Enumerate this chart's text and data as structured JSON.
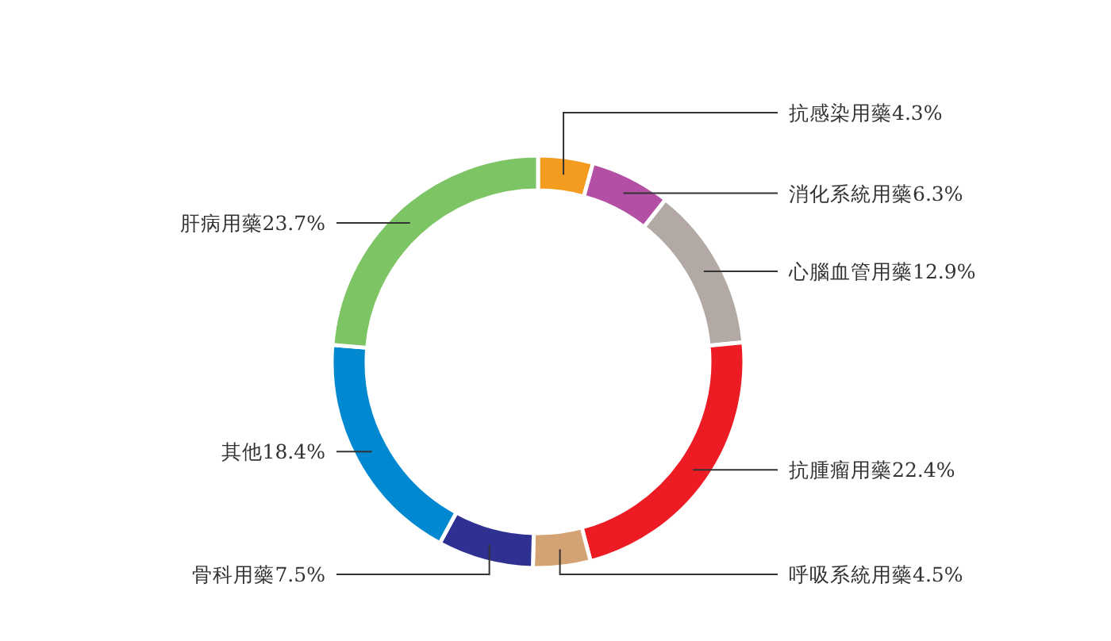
{
  "chart_data": {
    "type": "donut",
    "categories": [
      "抗感染用藥",
      "消化系統用藥",
      "心腦血管用藥",
      "抗腫瘤用藥",
      "呼吸系統用藥",
      "骨科用藥",
      "其他",
      "肝病用藥"
    ],
    "values": [
      4.3,
      6.3,
      12.9,
      22.4,
      4.5,
      7.5,
      18.4,
      23.7
    ],
    "value_labels": [
      "4.3%",
      "6.3%",
      "12.9%",
      "22.4%",
      "4.5%",
      "7.5%",
      "18.4%",
      "23.7%"
    ],
    "colors": [
      "#f39c1f",
      "#b44fa6",
      "#b3a9a4",
      "#ed1c24",
      "#d4a373",
      "#2e3192",
      "#0088d1",
      "#7dc464"
    ]
  }
}
